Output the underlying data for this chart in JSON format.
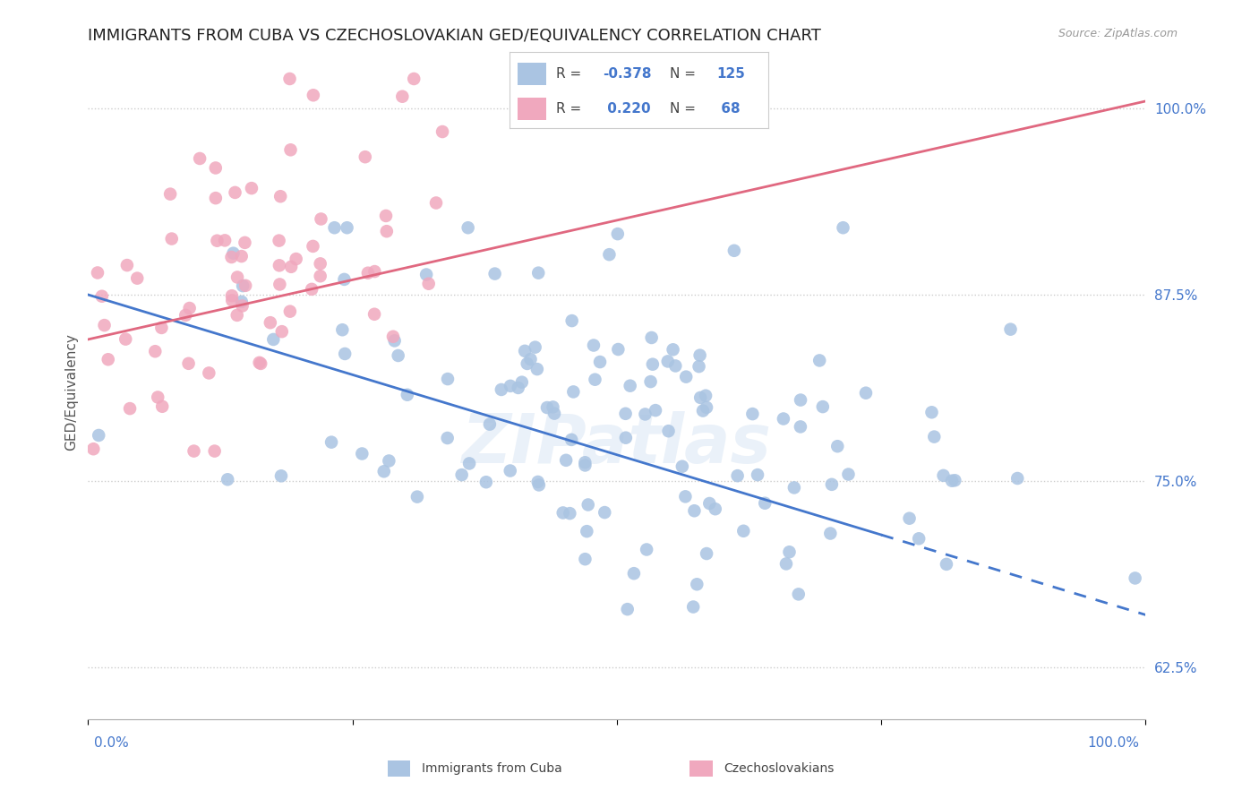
{
  "title": "IMMIGRANTS FROM CUBA VS CZECHOSLOVAKIAN GED/EQUIVALENCY CORRELATION CHART",
  "source_text": "Source: ZipAtlas.com",
  "ylabel": "GED/Equivalency",
  "xlim": [
    0.0,
    100.0
  ],
  "ylim": [
    59.0,
    103.0
  ],
  "yticks": [
    62.5,
    75.0,
    87.5,
    100.0
  ],
  "ytick_labels": [
    "62.5%",
    "75.0%",
    "87.5%",
    "100.0%"
  ],
  "blue_color": "#aac4e2",
  "pink_color": "#f0a8be",
  "blue_line_color": "#4477cc",
  "pink_line_color": "#e06880",
  "blue_R": -0.378,
  "blue_N": 125,
  "pink_R": 0.22,
  "pink_N": 68,
  "legend_label_blue": "Immigrants from Cuba",
  "legend_label_pink": "Czechoslovakians",
  "watermark": "ZIPatlas",
  "background_color": "#ffffff",
  "grid_color": "#cccccc",
  "title_fontsize": 13,
  "axis_label_fontsize": 11,
  "tick_fontsize": 11,
  "blue_line_start_y": 87.5,
  "blue_line_end_x": 100,
  "blue_line_end_y": 66.0,
  "pink_line_start_y": 84.5,
  "pink_line_end_y": 100.5
}
